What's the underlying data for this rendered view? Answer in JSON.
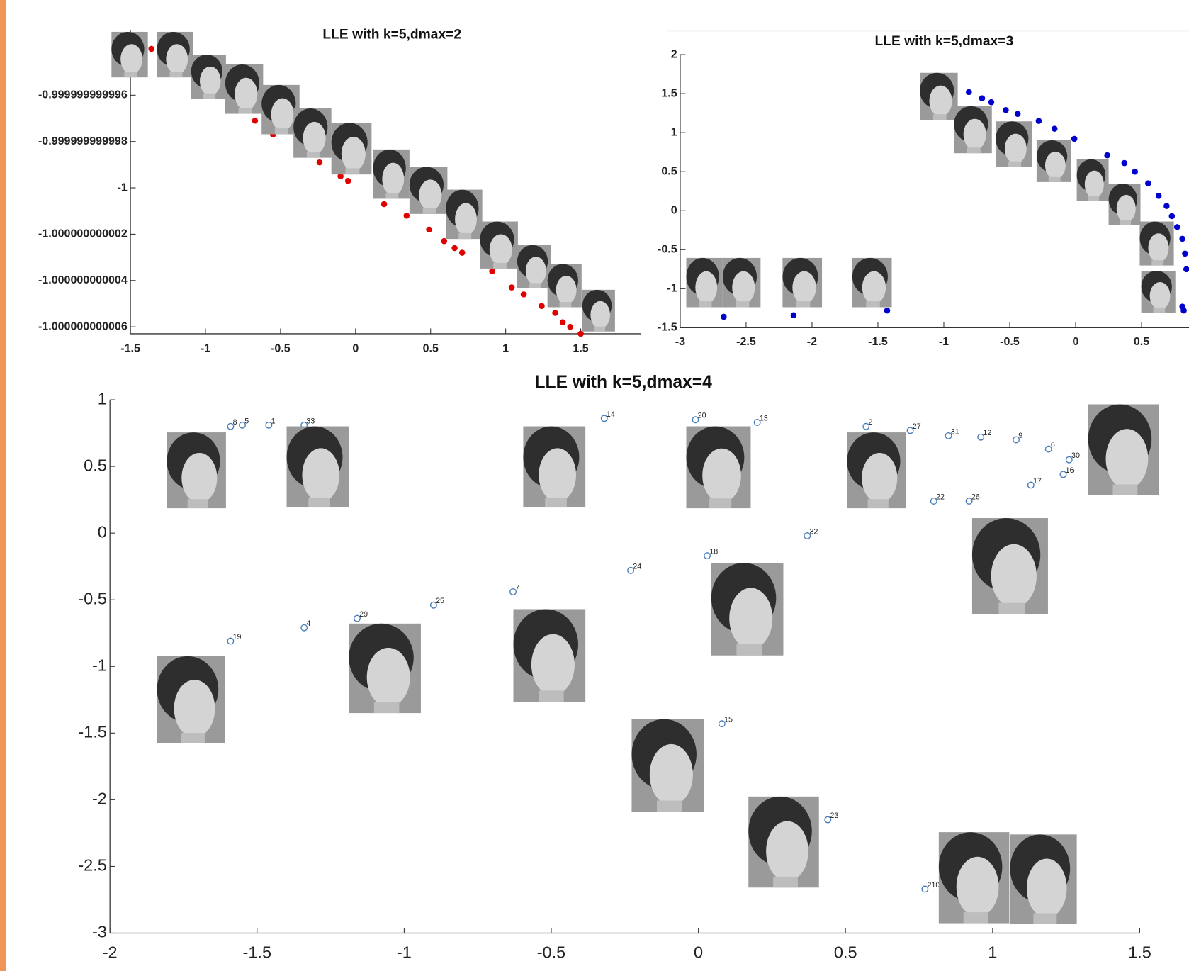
{
  "chart_data": [
    {
      "type": "scatter",
      "title": "LLE with k=5,dmax=2",
      "color": "#e00000",
      "filled": true,
      "x": [
        -1.36,
        -0.67,
        -0.55,
        -0.24,
        -0.1,
        -0.05,
        0.19,
        0.34,
        0.49,
        0.59,
        0.66,
        0.71,
        0.91,
        1.04,
        1.12,
        1.24,
        1.33,
        1.38,
        1.43,
        1.5
      ],
      "y": [
        -0.999999999994,
        -0.9999999999971,
        -0.9999999999977,
        -0.9999999999989,
        -0.9999999999995,
        -0.9999999999997,
        -1.0000000000007,
        -1.0000000000012,
        -1.0000000000018,
        -1.0000000000023,
        -1.0000000000026,
        -1.0000000000028,
        -1.0000000000036,
        -1.0000000000043,
        -1.0000000000046,
        -1.0000000000051,
        -1.0000000000054,
        -1.0000000000058,
        -1.000000000006,
        -1.0000000000063
      ],
      "xlim": [
        -1.5,
        1.9
      ],
      "ylim": [
        -1.0000000000063,
        -0.9999999999932
      ],
      "xticks": [
        -1.5,
        -1,
        -0.5,
        0,
        0.5,
        1,
        1.5
      ],
      "yticks": [
        -0.999999999996,
        -0.999999999998,
        -1,
        -1.000000000002,
        -1.000000000004,
        -1.000000000006
      ]
    },
    {
      "type": "scatter",
      "title": "LLE with k=5,dmax=3",
      "color": "#0000cc",
      "filled": true,
      "x": [
        -2.67,
        -2.14,
        -1.43,
        -0.81,
        -0.71,
        -0.64,
        -0.53,
        -0.44,
        -0.28,
        -0.16,
        -0.01,
        0.24,
        0.37,
        0.45,
        0.55,
        0.63,
        0.69,
        0.73,
        0.77,
        0.81,
        0.83,
        0.84,
        0.81,
        0.82
      ],
      "y": [
        -1.36,
        -1.34,
        -1.28,
        1.52,
        1.44,
        1.39,
        1.29,
        1.24,
        1.15,
        1.05,
        0.92,
        0.71,
        0.61,
        0.5,
        0.35,
        0.19,
        0.06,
        -0.07,
        -0.21,
        -0.36,
        -0.55,
        -0.75,
        -1.23,
        -1.28
      ],
      "xlim": [
        -3,
        0.86
      ],
      "ylim": [
        -1.5,
        2
      ],
      "xticks": [
        -3,
        -2.5,
        -2,
        -1.5,
        -1,
        -0.5,
        0,
        0.5
      ],
      "yticks": [
        -1.5,
        -1,
        -0.5,
        0,
        0.5,
        1,
        1.5,
        2
      ]
    },
    {
      "type": "scatter",
      "title": "LLE with k=5,dmax=4",
      "color": "#4a7ebb",
      "filled": false,
      "labels": [
        "8",
        "5",
        "1",
        "33",
        "14",
        "20",
        "13",
        "2",
        "27",
        "31",
        "12",
        "9",
        "6",
        "30",
        "16",
        "17",
        "22",
        "26",
        "32",
        "18",
        "24",
        "7",
        "25",
        "29",
        "4",
        "19",
        "15",
        "23",
        "210"
      ],
      "x": [
        -1.59,
        -1.55,
        -1.46,
        -1.34,
        -0.32,
        -0.01,
        0.2,
        0.57,
        0.72,
        0.85,
        0.96,
        1.08,
        1.19,
        1.26,
        1.24,
        1.13,
        0.8,
        0.92,
        0.37,
        0.03,
        -0.23,
        -0.63,
        -0.9,
        -1.16,
        -1.34,
        -1.59,
        0.08,
        0.44,
        0.77
      ],
      "y": [
        0.8,
        0.81,
        0.81,
        0.81,
        0.86,
        0.85,
        0.83,
        0.8,
        0.77,
        0.73,
        0.72,
        0.7,
        0.63,
        0.55,
        0.44,
        0.36,
        0.24,
        0.24,
        -0.02,
        -0.17,
        -0.28,
        -0.44,
        -0.54,
        -0.64,
        -0.71,
        -0.81,
        -1.43,
        -2.15,
        -2.67
      ],
      "xlim": [
        -2,
        1.5
      ],
      "ylim": [
        -3,
        1
      ],
      "xticks": [
        -2,
        -1.5,
        -1,
        -0.5,
        0,
        0.5,
        1,
        1.5
      ],
      "yticks": [
        -3,
        -2.5,
        -2,
        -1.5,
        -1,
        -0.5,
        0,
        0.5,
        1
      ]
    }
  ]
}
